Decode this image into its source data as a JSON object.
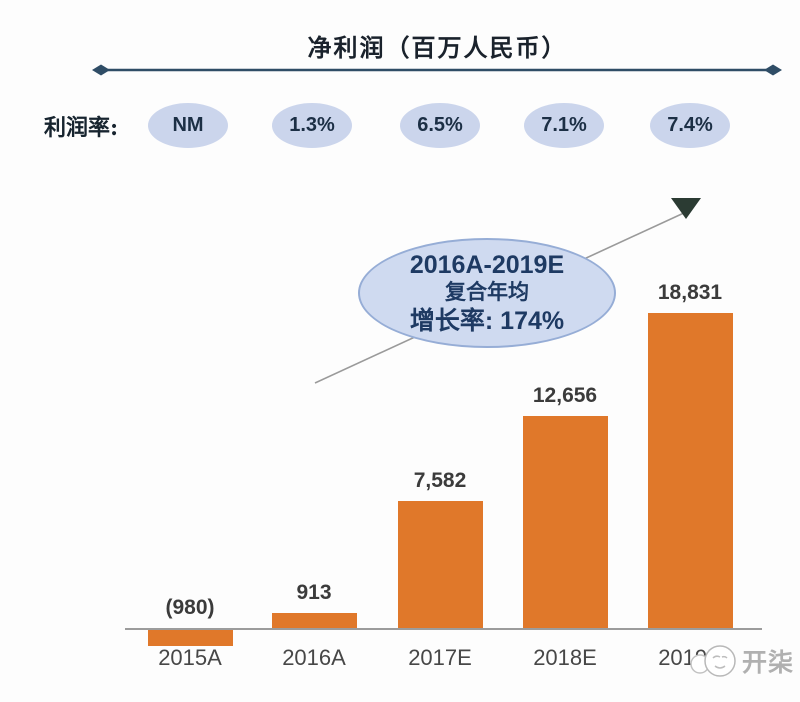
{
  "header": {
    "title": "净利润（百万人民币）"
  },
  "margin_row": {
    "label": "利润率:",
    "values": [
      "NM",
      "1.3%",
      "6.5%",
      "7.1%",
      "7.4%"
    ]
  },
  "annotation": {
    "line1": "2016A-2019E",
    "line2": "复合年均",
    "line3": "增长率: 174%"
  },
  "watermark": {
    "text": "开柒"
  },
  "chart_data": {
    "type": "bar",
    "title": "净利润（百万人民币）",
    "series_name": "净利润",
    "categories": [
      "2015A",
      "2016A",
      "2017E",
      "2018E",
      "2019E"
    ],
    "values": [
      -980,
      913,
      7582,
      12656,
      18831
    ],
    "value_labels": [
      "(980)",
      "913",
      "7,582",
      "12,656",
      "18,831"
    ],
    "profit_margin_row": {
      "label": "利润率:",
      "values": [
        "NM",
        "1.3%",
        "6.5%",
        "7.1%",
        "7.4%"
      ]
    },
    "cagr_annotation": "2016A-2019E 复合年均 增长率: 174%",
    "bar_color": "#e0782a",
    "ylim": [
      -1500,
      20000
    ],
    "grid": false,
    "legend": "none"
  },
  "colors": {
    "bar": "#e0782a",
    "ellipse_fill": "#cbd5ec",
    "annotation_fill": "#cfdaf0",
    "annotation_border": "#96add6",
    "navy_text": "#1e3a63",
    "top_arrow": "#2f4d66",
    "axis": "#9c9c9c",
    "watermark": "#b0b0b0"
  }
}
